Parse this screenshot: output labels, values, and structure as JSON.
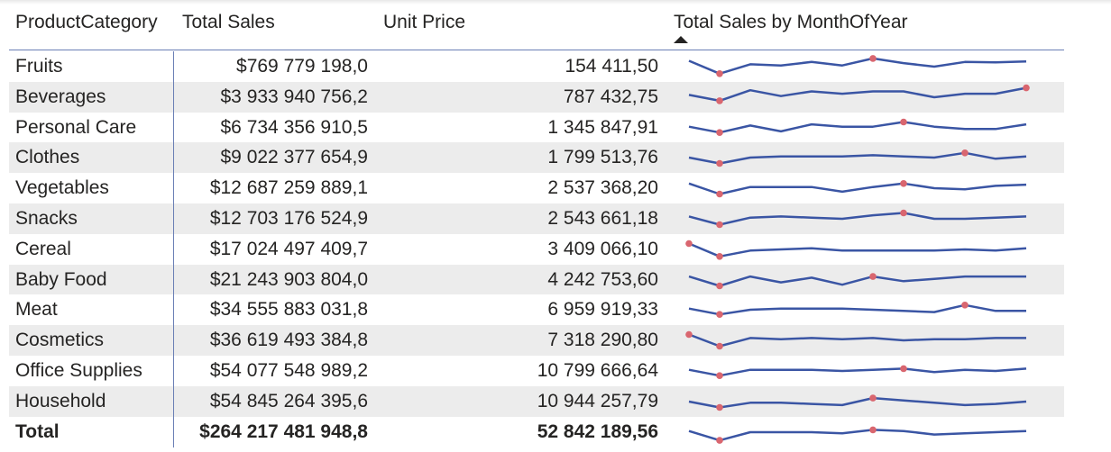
{
  "table": {
    "headers": {
      "category": "ProductCategory",
      "total_sales": "Total Sales",
      "unit_price": "Unit Price",
      "sparkline": "Total Sales by MonthOfYear"
    },
    "sort": "descending",
    "line_color": "#3a55a4",
    "marker_color": "#d9666f",
    "rows": [
      {
        "category": "Fruits",
        "total_sales": "$769 779 198,0",
        "unit_price": "154 411,50",
        "spark": [
          0.75,
          0.2,
          0.6,
          0.55,
          0.7,
          0.55,
          0.85,
          0.65,
          0.5,
          0.7,
          0.68,
          0.72
        ],
        "marks": [
          1,
          6
        ]
      },
      {
        "category": "Beverages",
        "total_sales": "$3 933 940 756,2",
        "unit_price": "787 432,75",
        "spark": [
          0.6,
          0.35,
          0.8,
          0.55,
          0.75,
          0.65,
          0.75,
          0.75,
          0.5,
          0.65,
          0.65,
          0.9
        ],
        "marks": [
          1,
          11
        ]
      },
      {
        "category": "Personal Care",
        "total_sales": "$6 734 356 910,5",
        "unit_price": "1 345 847,91",
        "spark": [
          0.55,
          0.3,
          0.6,
          0.35,
          0.65,
          0.55,
          0.55,
          0.75,
          0.55,
          0.45,
          0.45,
          0.65
        ],
        "marks": [
          1,
          7
        ]
      },
      {
        "category": "Clothes",
        "total_sales": "$9 022 377 654,9",
        "unit_price": "1 799 513,76",
        "spark": [
          0.5,
          0.25,
          0.5,
          0.55,
          0.55,
          0.55,
          0.6,
          0.55,
          0.5,
          0.7,
          0.45,
          0.55
        ],
        "marks": [
          1,
          9
        ]
      },
      {
        "category": "Vegetables",
        "total_sales": "$12 687 259 889,1",
        "unit_price": "2 537 368,20",
        "spark": [
          0.7,
          0.25,
          0.55,
          0.55,
          0.55,
          0.35,
          0.55,
          0.7,
          0.5,
          0.45,
          0.6,
          0.65
        ],
        "marks": [
          1,
          7
        ]
      },
      {
        "category": "Snacks",
        "total_sales": "$12 703 176 524,9",
        "unit_price": "2 543 661,18",
        "spark": [
          0.6,
          0.25,
          0.55,
          0.6,
          0.55,
          0.5,
          0.65,
          0.75,
          0.5,
          0.5,
          0.55,
          0.6
        ],
        "marks": [
          1,
          7
        ]
      },
      {
        "category": "Cereal",
        "total_sales": "$17 024 497 409,7",
        "unit_price": "3 409 066,10",
        "spark": [
          0.75,
          0.2,
          0.45,
          0.5,
          0.55,
          0.45,
          0.45,
          0.45,
          0.45,
          0.5,
          0.45,
          0.55
        ],
        "marks": [
          0,
          1
        ]
      },
      {
        "category": "Baby Food",
        "total_sales": "$21 243 903 804,0",
        "unit_price": "4 242 753,60",
        "spark": [
          0.65,
          0.25,
          0.65,
          0.4,
          0.6,
          0.3,
          0.65,
          0.45,
          0.55,
          0.65,
          0.65,
          0.65
        ],
        "marks": [
          1,
          6
        ]
      },
      {
        "category": "Meat",
        "total_sales": "$34 555 883 031,8",
        "unit_price": "6 959 919,33",
        "spark": [
          0.55,
          0.3,
          0.5,
          0.55,
          0.55,
          0.55,
          0.5,
          0.45,
          0.4,
          0.7,
          0.45,
          0.45
        ],
        "marks": [
          1,
          9
        ]
      },
      {
        "category": "Cosmetics",
        "total_sales": "$36 619 493 384,8",
        "unit_price": "7 318 290,80",
        "spark": [
          0.75,
          0.25,
          0.6,
          0.55,
          0.6,
          0.55,
          0.6,
          0.5,
          0.55,
          0.55,
          0.6,
          0.6
        ],
        "marks": [
          0,
          1
        ]
      },
      {
        "category": "Office Supplies",
        "total_sales": "$54 077 548 989,2",
        "unit_price": "10 799 666,64",
        "spark": [
          0.55,
          0.3,
          0.55,
          0.55,
          0.55,
          0.5,
          0.55,
          0.6,
          0.45,
          0.55,
          0.5,
          0.6
        ],
        "marks": [
          1,
          7
        ]
      },
      {
        "category": "Household",
        "total_sales": "$54 845 264 395,6",
        "unit_price": "10 944 257,79",
        "spark": [
          0.5,
          0.25,
          0.45,
          0.45,
          0.4,
          0.35,
          0.65,
          0.55,
          0.45,
          0.35,
          0.4,
          0.5
        ],
        "marks": [
          1,
          6
        ]
      },
      {
        "category": "Total",
        "total_sales": "$264 217 481 948,8",
        "unit_price": "52 842 189,56",
        "spark": [
          0.55,
          0.15,
          0.5,
          0.5,
          0.5,
          0.45,
          0.6,
          0.55,
          0.4,
          0.45,
          0.5,
          0.55
        ],
        "marks": [
          1,
          6
        ],
        "total": true
      }
    ]
  }
}
